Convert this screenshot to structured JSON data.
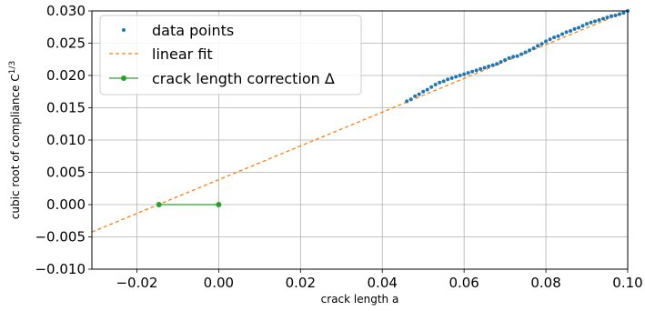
{
  "chart_data": {
    "type": "scatter",
    "xlabel": "crack length a",
    "ylabel": "cubic root of compliance C",
    "ylabel_superscript": "1/3",
    "xlim": [
      -0.031,
      0.1
    ],
    "ylim": [
      -0.01,
      0.03
    ],
    "x_ticks": [
      -0.02,
      0.0,
      0.02,
      0.04,
      0.06,
      0.08,
      0.1
    ],
    "x_tick_labels": [
      "−0.02",
      "0.00",
      "0.02",
      "0.04",
      "0.06",
      "0.08",
      "0.10"
    ],
    "y_ticks": [
      -0.01,
      -0.005,
      0.0,
      0.005,
      0.01,
      0.015,
      0.02,
      0.025,
      0.03
    ],
    "y_tick_labels": [
      "−0.010",
      "−0.005",
      "0.000",
      "0.005",
      "0.010",
      "0.015",
      "0.020",
      "0.025",
      "0.030"
    ],
    "grid": true,
    "legend_position": "top-left",
    "colors": {
      "data": "#1f77b4",
      "fit": "#ff7f0e",
      "correction": "#2ca02c",
      "grid": "#b0b0b0"
    },
    "series": [
      {
        "name": "data points",
        "kind": "scatter",
        "x": [
          0.046,
          0.047,
          0.048,
          0.049,
          0.05,
          0.051,
          0.052,
          0.053,
          0.054,
          0.055,
          0.056,
          0.057,
          0.058,
          0.059,
          0.06,
          0.061,
          0.062,
          0.063,
          0.064,
          0.065,
          0.066,
          0.067,
          0.068,
          0.069,
          0.07,
          0.071,
          0.072,
          0.073,
          0.074,
          0.075,
          0.076,
          0.077,
          0.078,
          0.079,
          0.08,
          0.081,
          0.082,
          0.083,
          0.084,
          0.085,
          0.086,
          0.087,
          0.088,
          0.089,
          0.09,
          0.091,
          0.092,
          0.093,
          0.094,
          0.095,
          0.096,
          0.097,
          0.098,
          0.099,
          0.1
        ],
        "y": [
          0.016,
          0.0163,
          0.0168,
          0.0171,
          0.0175,
          0.0178,
          0.0182,
          0.0186,
          0.0189,
          0.0191,
          0.0194,
          0.0196,
          0.0198,
          0.02,
          0.0202,
          0.0204,
          0.0206,
          0.0208,
          0.021,
          0.0212,
          0.0214,
          0.0216,
          0.0218,
          0.0221,
          0.0224,
          0.0227,
          0.0229,
          0.023,
          0.0233,
          0.0236,
          0.0239,
          0.0242,
          0.0246,
          0.0249,
          0.0253,
          0.0256,
          0.0259,
          0.0261,
          0.0264,
          0.0267,
          0.0269,
          0.0272,
          0.0274,
          0.0277,
          0.028,
          0.0282,
          0.0284,
          0.0286,
          0.0288,
          0.029,
          0.0292,
          0.0293,
          0.0295,
          0.0297,
          0.03
        ]
      },
      {
        "name": "linear fit",
        "kind": "dashed-line",
        "x": [
          -0.031,
          0.1
        ],
        "y": [
          -0.00425,
          0.03
        ]
      },
      {
        "name": "crack length correction Δ",
        "kind": "line-markers",
        "x": [
          -0.0146,
          0.0
        ],
        "y": [
          0.0,
          0.0
        ]
      }
    ]
  }
}
